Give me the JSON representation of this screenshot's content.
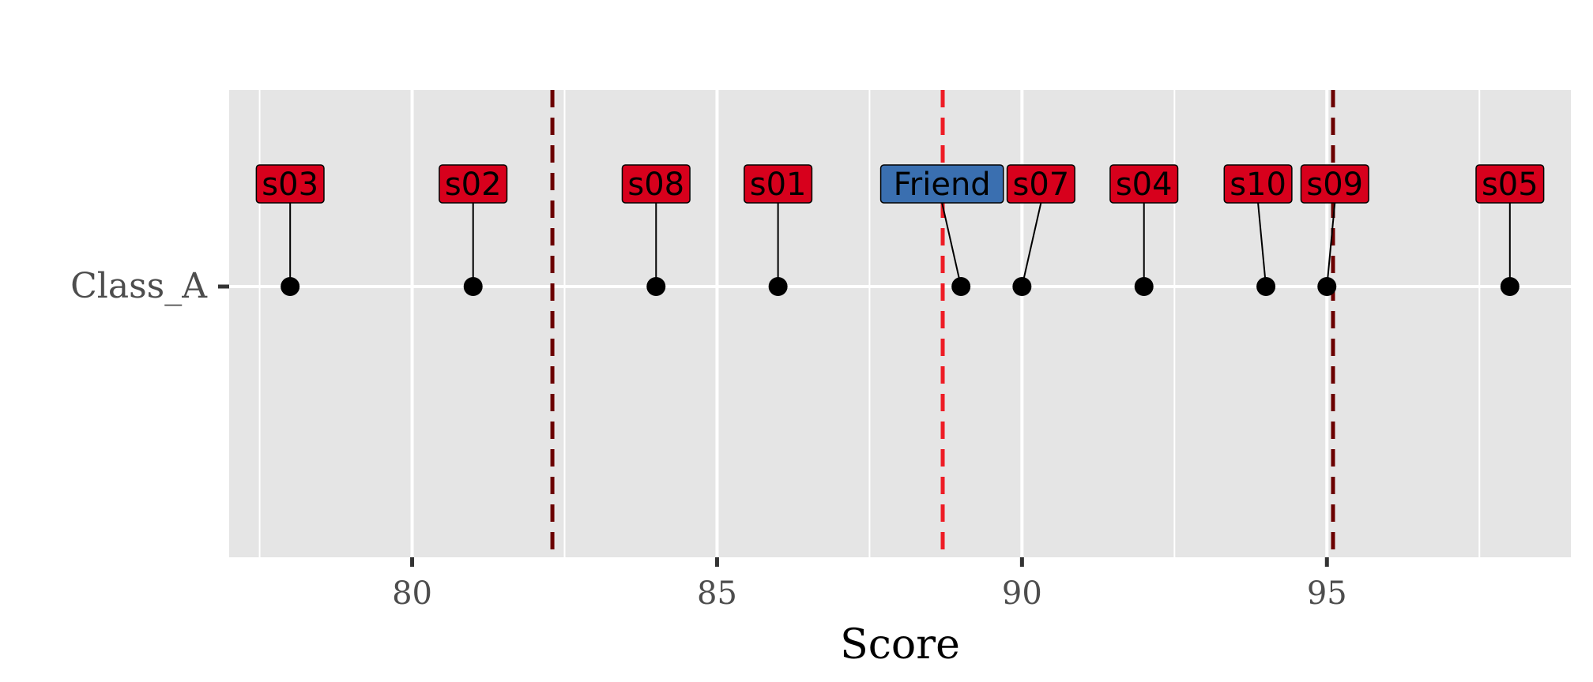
{
  "chart_data": {
    "type": "scatter",
    "title": "",
    "xlabel": "Score",
    "ylabel": "",
    "xlim": [
      77.0,
      99.0
    ],
    "x_ticks": [
      80,
      85,
      90,
      95
    ],
    "x_tick_labels": [
      "80",
      "85",
      "90",
      "95"
    ],
    "categories": [
      "Class_A"
    ],
    "grid": true,
    "points": [
      {
        "label": "s03",
        "x": 78,
        "category": "Class_A",
        "highlight": false
      },
      {
        "label": "s02",
        "x": 81,
        "category": "Class_A",
        "highlight": false
      },
      {
        "label": "s08",
        "x": 84,
        "category": "Class_A",
        "highlight": false
      },
      {
        "label": "s01",
        "x": 86,
        "category": "Class_A",
        "highlight": false
      },
      {
        "label": "Friend",
        "x": 89,
        "category": "Class_A",
        "highlight": true
      },
      {
        "label": "s07",
        "x": 90,
        "category": "Class_A",
        "highlight": false
      },
      {
        "label": "s04",
        "x": 92,
        "category": "Class_A",
        "highlight": false
      },
      {
        "label": "s10",
        "x": 94,
        "category": "Class_A",
        "highlight": false
      },
      {
        "label": "s09",
        "x": 95,
        "category": "Class_A",
        "highlight": false
      },
      {
        "label": "s05",
        "x": 98,
        "category": "Class_A",
        "highlight": false
      }
    ],
    "reference_lines": [
      {
        "x": 82.3,
        "color": "#6b0000",
        "style": "dashed"
      },
      {
        "x": 88.7,
        "color": "#ee1c25",
        "style": "dashed"
      },
      {
        "x": 95.1,
        "color": "#6b0000",
        "style": "dashed"
      }
    ],
    "colors": {
      "panel_background": "#e5e5e5",
      "gridline": "#ffffff",
      "point": "#000000",
      "label_default": "#d7001c",
      "label_highlight": "#3a6fb0"
    }
  }
}
